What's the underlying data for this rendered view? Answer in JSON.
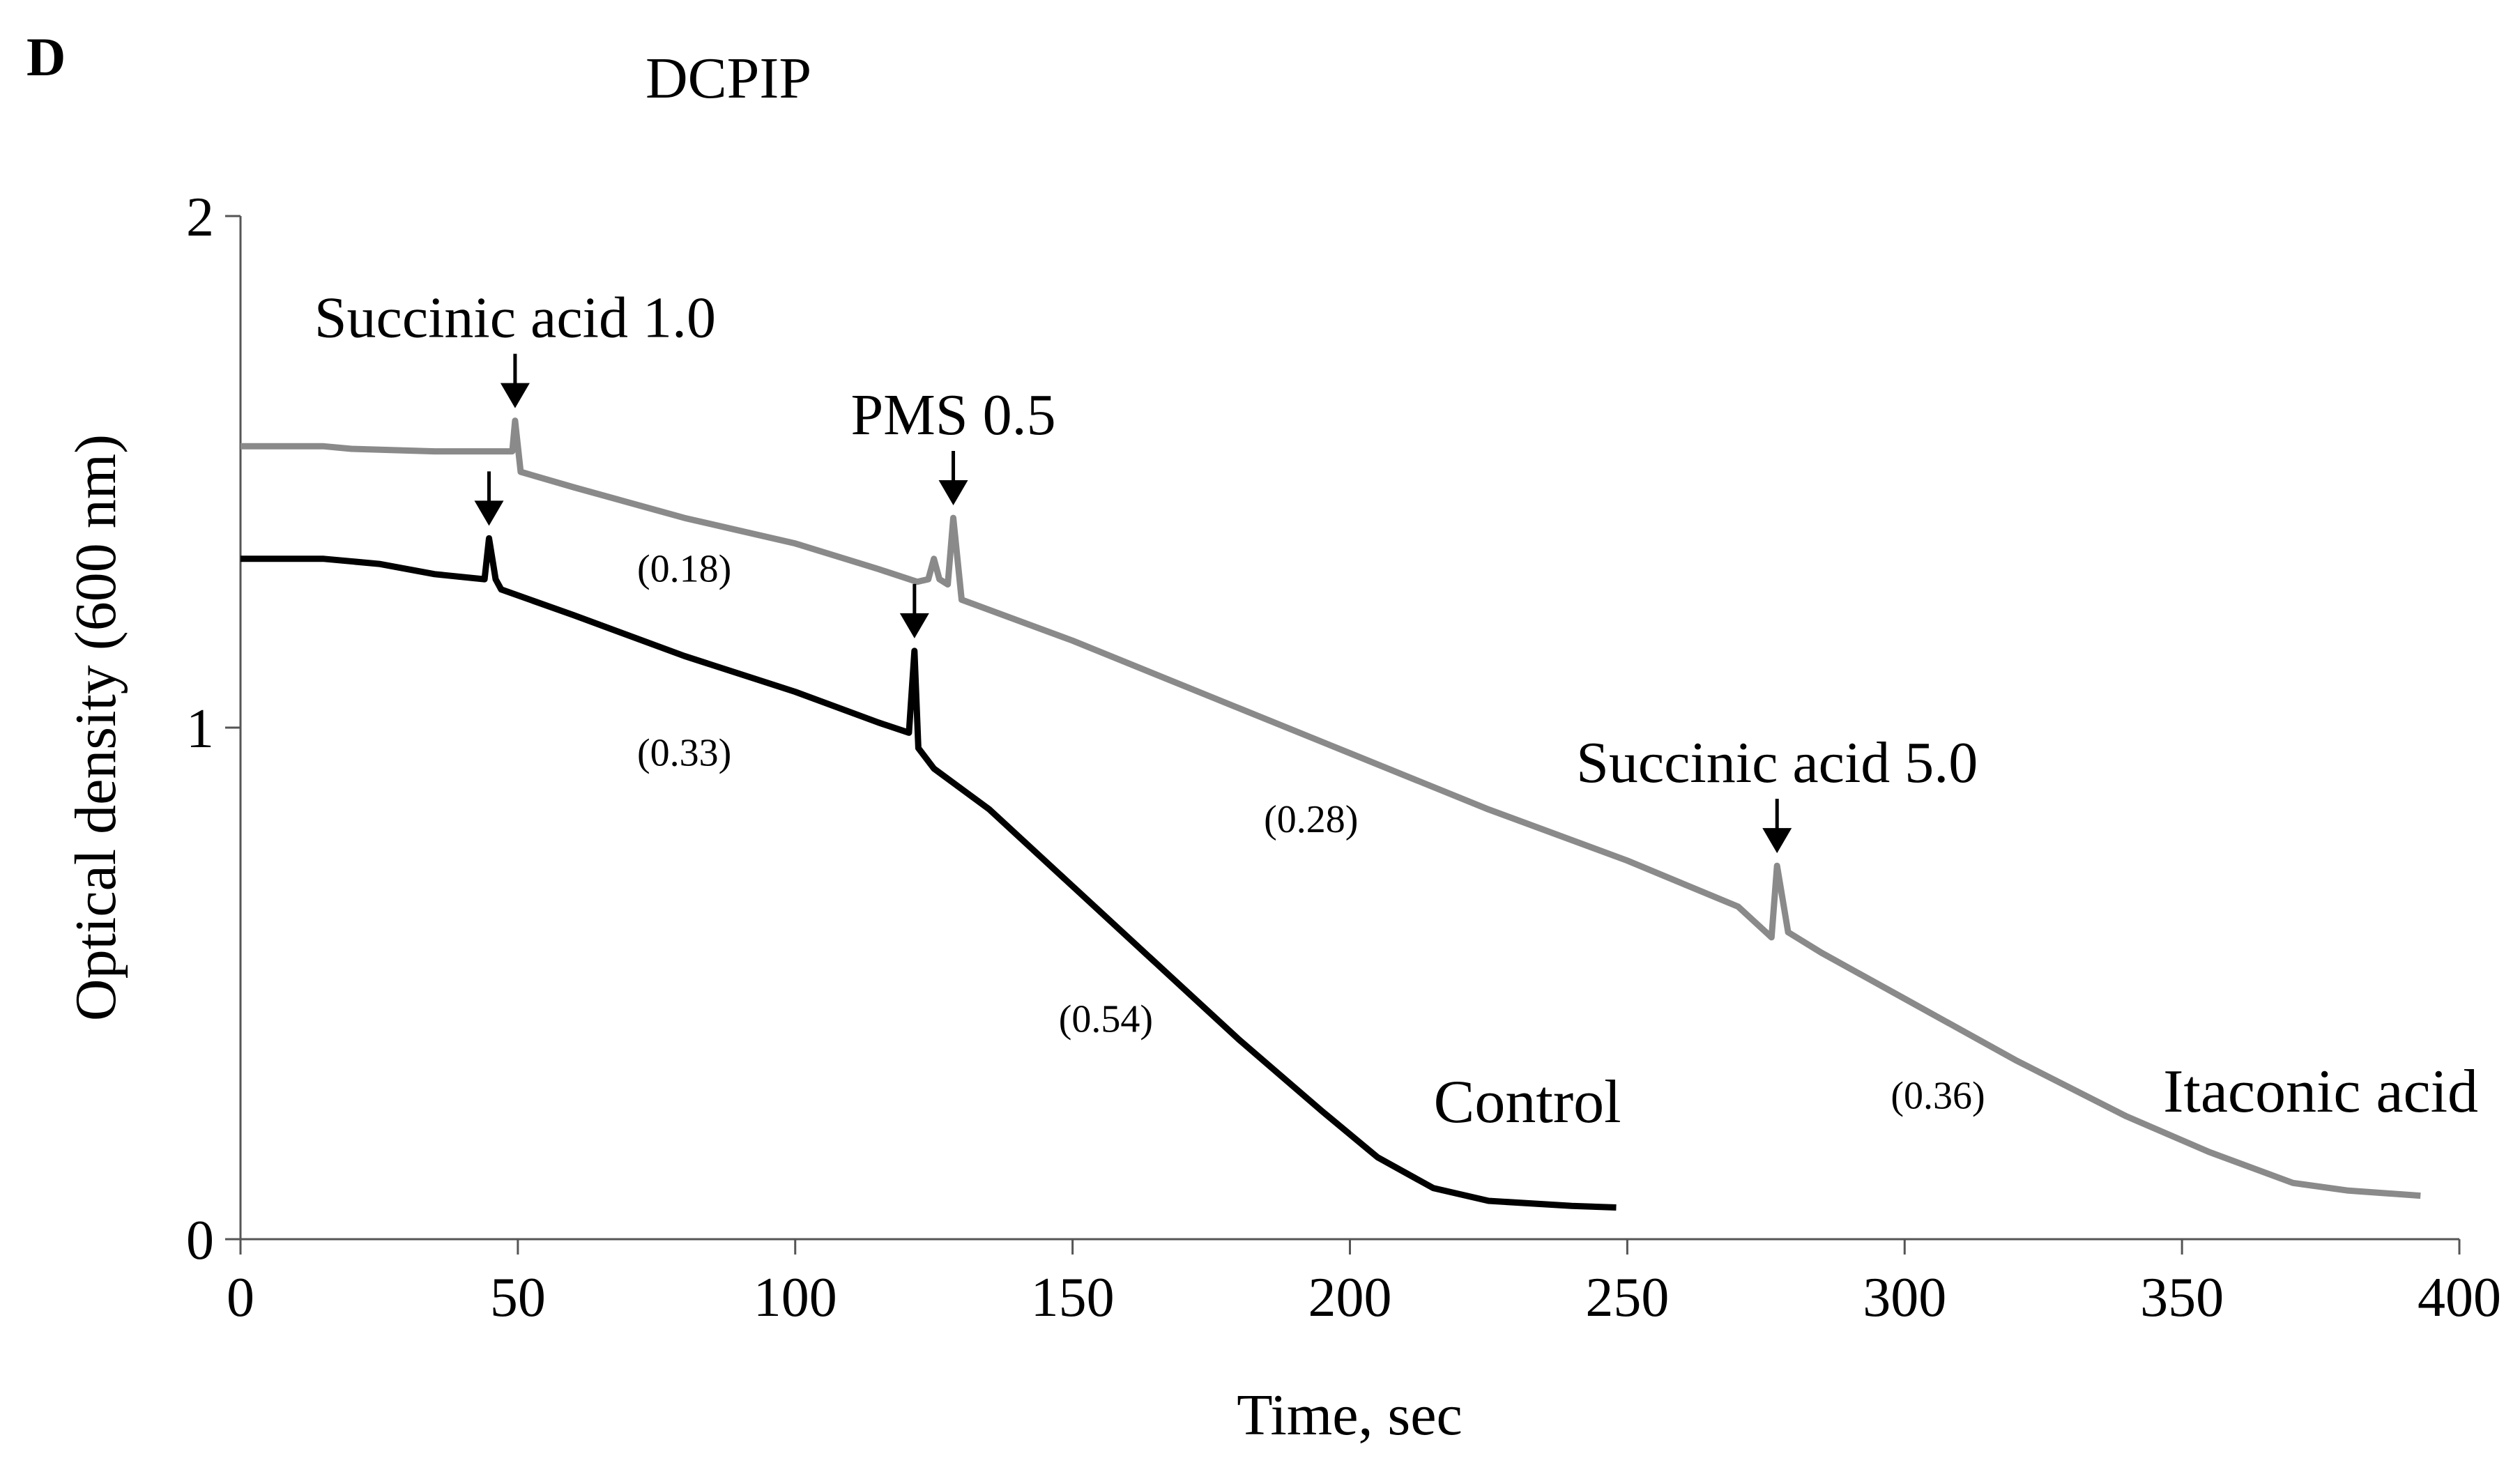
{
  "panel_label": "D",
  "chart_data": {
    "type": "line",
    "title": "DCPIP",
    "xlabel": "Time, sec",
    "ylabel": "Optical density (600 nm)",
    "xlim": [
      0,
      400
    ],
    "ylim": [
      0,
      2
    ],
    "xticks": [
      "0",
      "50",
      "100",
      "150",
      "200",
      "250",
      "300",
      "350",
      "400"
    ],
    "yticks": [
      "0",
      "1",
      "2"
    ],
    "grid": false,
    "series": [
      {
        "name": "Itaconic acid",
        "color": "#8a8a8a",
        "points": [
          [
            0,
            1.55
          ],
          [
            15,
            1.55
          ],
          [
            20,
            1.545
          ],
          [
            35,
            1.54
          ],
          [
            49,
            1.54
          ],
          [
            49.5,
            1.6
          ],
          [
            50.5,
            1.5
          ],
          [
            60,
            1.47
          ],
          [
            80,
            1.41
          ],
          [
            100,
            1.36
          ],
          [
            115,
            1.31
          ],
          [
            122,
            1.285
          ],
          [
            124,
            1.29
          ],
          [
            125,
            1.33
          ],
          [
            126,
            1.29
          ],
          [
            127.5,
            1.28
          ],
          [
            128.5,
            1.41
          ],
          [
            130,
            1.25
          ],
          [
            150,
            1.17
          ],
          [
            175,
            1.06
          ],
          [
            200,
            0.95
          ],
          [
            225,
            0.84
          ],
          [
            250,
            0.74
          ],
          [
            270,
            0.65
          ],
          [
            276,
            0.59
          ],
          [
            277,
            0.73
          ],
          [
            279,
            0.6
          ],
          [
            285,
            0.56
          ],
          [
            300,
            0.47
          ],
          [
            320,
            0.35
          ],
          [
            340,
            0.24
          ],
          [
            355,
            0.17
          ],
          [
            370,
            0.11
          ],
          [
            380,
            0.095
          ],
          [
            393,
            0.085
          ]
        ]
      },
      {
        "name": "Control",
        "color": "#000000",
        "points": [
          [
            0,
            1.33
          ],
          [
            15,
            1.33
          ],
          [
            25,
            1.32
          ],
          [
            35,
            1.3
          ],
          [
            44,
            1.29
          ],
          [
            44.8,
            1.37
          ],
          [
            46,
            1.29
          ],
          [
            47,
            1.27
          ],
          [
            60,
            1.22
          ],
          [
            80,
            1.14
          ],
          [
            100,
            1.07
          ],
          [
            115,
            1.01
          ],
          [
            120.5,
            0.99
          ],
          [
            121.5,
            1.15
          ],
          [
            122.2,
            0.96
          ],
          [
            125,
            0.92
          ],
          [
            135,
            0.84
          ],
          [
            150,
            0.69
          ],
          [
            165,
            0.54
          ],
          [
            180,
            0.39
          ],
          [
            195,
            0.25
          ],
          [
            205,
            0.16
          ],
          [
            215,
            0.1
          ],
          [
            225,
            0.075
          ],
          [
            240,
            0.065
          ],
          [
            248,
            0.062
          ]
        ]
      }
    ],
    "annotations": [
      {
        "text": "Succinic acid 1.0",
        "x": 49.5,
        "y": 1.6
      },
      {
        "text": "PMS 0.5",
        "x": 128.5,
        "y": 1.41
      },
      {
        "text": "Succinic acid 5.0",
        "x": 277,
        "y": 0.73
      }
    ],
    "arrows_at": [
      {
        "x": 49.5,
        "y": 1.6
      },
      {
        "x": 44.8,
        "y": 1.37
      },
      {
        "x": 128.5,
        "y": 1.41
      },
      {
        "x": 121.5,
        "y": 1.15
      },
      {
        "x": 277,
        "y": 0.73
      }
    ],
    "rate_labels": [
      {
        "text": "(0.18)",
        "x": 80,
        "y": 1.31
      },
      {
        "text": "(0.33)",
        "x": 80,
        "y": 0.95
      },
      {
        "text": "(0.28)",
        "x": 193,
        "y": 0.82
      },
      {
        "text": "(0.54)",
        "x": 156,
        "y": 0.43
      },
      {
        "text": "(0.36)",
        "x": 306,
        "y": 0.28
      }
    ],
    "series_labels": [
      {
        "text": "Control",
        "x": 232,
        "y": 0.27
      },
      {
        "text": "Itaconic acid",
        "x": 375,
        "y": 0.29
      }
    ]
  }
}
